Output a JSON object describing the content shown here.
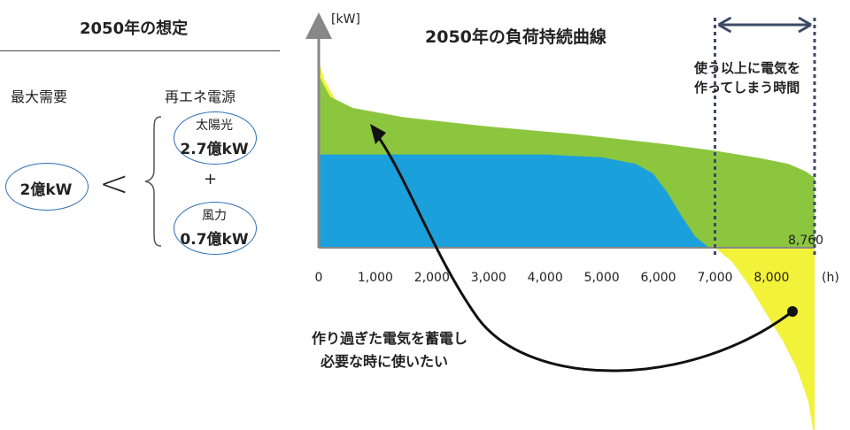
{
  "left_panel": {
    "title": "2050年の想定",
    "peak_demand_label": "最大需要",
    "peak_demand_value": "2億kW",
    "comparison_symbol": "<",
    "renewable_label": "再エネ電源",
    "solar_name": "太陽光",
    "solar_value": "2.7億kW",
    "plus_symbol": "+",
    "wind_name": "風力",
    "wind_value": "0.7億kW"
  },
  "chart_data": {
    "type": "area",
    "title": "2050年の負荷持続曲線",
    "ylabel": "[kW]",
    "xlabel": "(h)",
    "xlim": [
      0,
      8760
    ],
    "x_ticks": [
      "0",
      "1,000",
      "2,000",
      "3,000",
      "4,000",
      "5,000",
      "6,000",
      "7,000",
      "8,000"
    ],
    "x_tick_values": [
      0,
      1000,
      2000,
      3000,
      4000,
      5000,
      6000,
      7000,
      8000
    ],
    "x_end_label": "8,760",
    "ylim": [
      -2.1,
      2.05
    ],
    "series": [
      {
        "color": "#f2f23a",
        "x": [
          0,
          100,
          300,
          700,
          1200,
          1800,
          2500,
          2880,
          7000,
          7300,
          7600,
          7900,
          8200,
          8450,
          8650,
          8760
        ],
        "y": [
          2.0,
          1.8,
          1.58,
          1.38,
          1.22,
          1.1,
          1.02,
          1.0,
          0.0,
          -0.15,
          -0.4,
          -0.7,
          -1.0,
          -1.3,
          -1.65,
          -2.05
        ]
      },
      {
        "color": "#8cc63f",
        "x": [
          0,
          200,
          600,
          1500,
          3000,
          4500,
          6000,
          7000,
          7800,
          8300,
          8600,
          8760
        ],
        "y": [
          1.85,
          1.62,
          1.5,
          1.4,
          1.3,
          1.22,
          1.12,
          1.04,
          0.96,
          0.9,
          0.82,
          0.75
        ]
      },
      {
        "color": "#1ca0dc",
        "x": [
          0,
          4000,
          5000,
          5600,
          5900,
          6150,
          6400,
          6650,
          6900,
          7000
        ],
        "y": [
          1.0,
          1.0,
          0.97,
          0.9,
          0.8,
          0.6,
          0.35,
          0.12,
          0.0,
          0.0
        ]
      }
    ],
    "annotations": {
      "surplus_window": [
        7000,
        8760
      ],
      "surplus_text_1": "使う以上に電気を",
      "surplus_text_2": "作ってしまう時間",
      "storage_text_1": "作り過ぎた電気を蓄電し",
      "storage_text_2": "必要な時に使いたい"
    },
    "colors": {
      "solar_excess": "#f2f23a",
      "green_band": "#8cc63f",
      "blue_base": "#1ca0dc",
      "dotted": "#3b4a66",
      "axis": "#888888"
    }
  }
}
